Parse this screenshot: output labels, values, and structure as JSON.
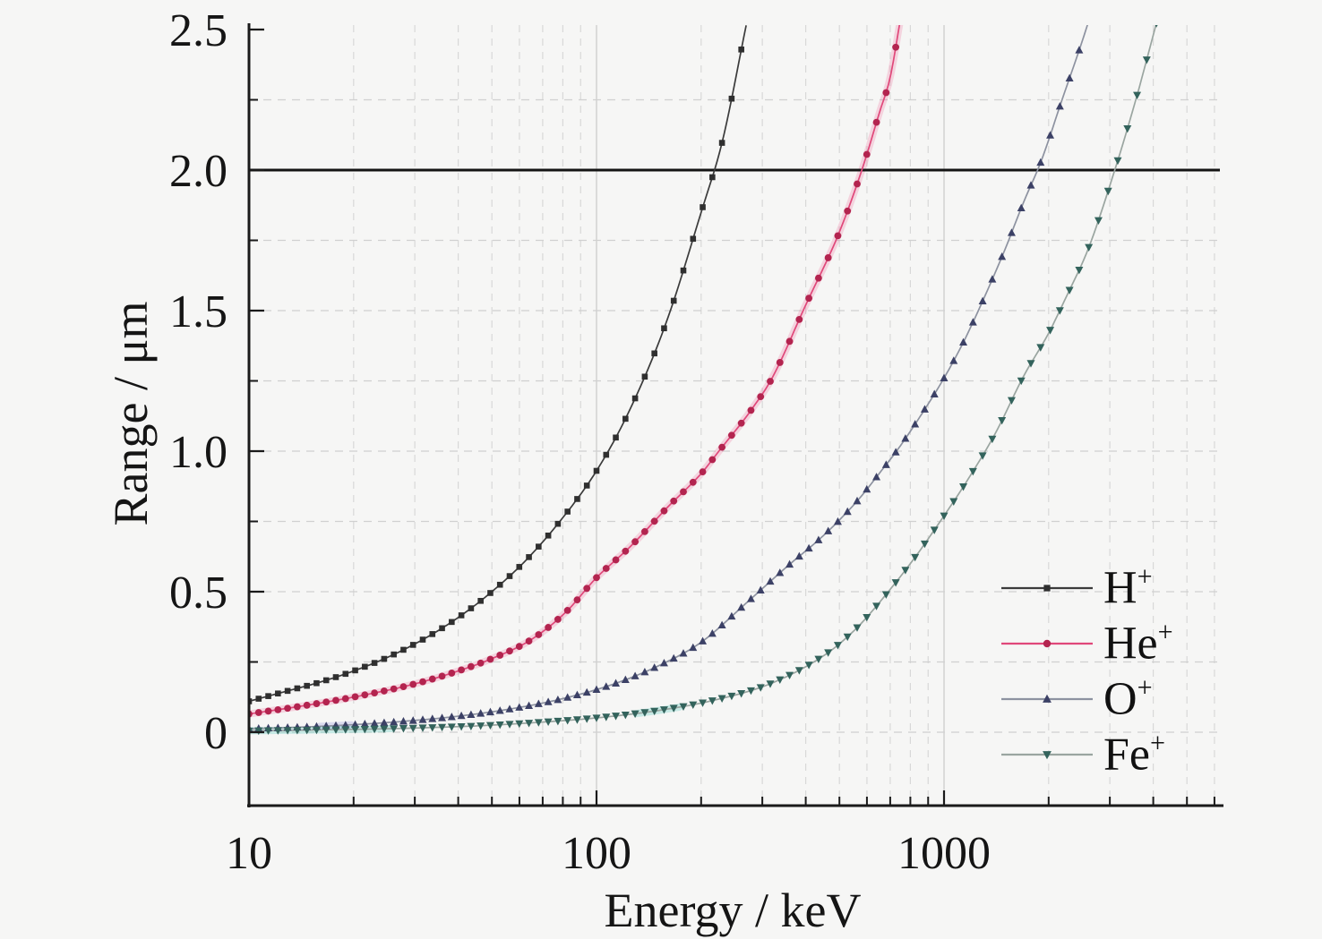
{
  "figure": {
    "background": "#f6f6f5"
  },
  "chart_data": {
    "type": "line",
    "title": "",
    "xlabel": "Energy / keV",
    "ylabel": "Range / μm",
    "x_scale": "log",
    "xlim": [
      10,
      6200
    ],
    "ylim": [
      -0.26,
      2.5
    ],
    "x_ticks": [
      {
        "value": 10,
        "label": "10"
      },
      {
        "value": 100,
        "label": "100"
      },
      {
        "value": 1000,
        "label": "1000"
      }
    ],
    "x_minor_ticks": [
      20,
      30,
      40,
      50,
      60,
      70,
      80,
      90,
      200,
      300,
      400,
      500,
      600,
      700,
      800,
      900,
      2000,
      3000,
      4000,
      5000,
      6000
    ],
    "y_ticks": [
      {
        "value": 0,
        "label": "0"
      },
      {
        "value": 0.5,
        "label": "0.5"
      },
      {
        "value": 1.0,
        "label": "1.0"
      },
      {
        "value": 1.5,
        "label": "1.5"
      },
      {
        "value": 2.0,
        "label": "2.0"
      },
      {
        "value": 2.5,
        "label": "2.5"
      }
    ],
    "y_minor_step": 0.25,
    "grid": {
      "on": true,
      "color": "#d8d8d8",
      "decade_color": "#d2d2d2",
      "style": "dashed",
      "horizontal_step": 0.25
    },
    "reference_line": {
      "y": 2.0,
      "color": "#141414",
      "width": 3
    },
    "legend": {
      "position": "inside lower right"
    },
    "marker_interval_per_decade": 36,
    "series": [
      {
        "name": "H+",
        "label": "H",
        "label_sup": "+",
        "marker": "square",
        "line_color": "#3b3b3b",
        "marker_color": "#2f2f2f",
        "glow_color": "",
        "glow_ranges": [],
        "points": [
          [
            10,
            0.11
          ],
          [
            13,
            0.148
          ],
          [
            16,
            0.178
          ],
          [
            20,
            0.218
          ],
          [
            25,
            0.266
          ],
          [
            32,
            0.333
          ],
          [
            40,
            0.408
          ],
          [
            50,
            0.5
          ],
          [
            63,
            0.615
          ],
          [
            79,
            0.755
          ],
          [
            100,
            0.93
          ],
          [
            125,
            1.15
          ],
          [
            160,
            1.47
          ],
          [
            200,
            1.85
          ],
          [
            230,
            2.1
          ],
          [
            270,
            2.52
          ]
        ]
      },
      {
        "name": "He+",
        "label": "He",
        "label_sup": "+",
        "marker": "circle",
        "line_color": "#e0487a",
        "marker_color": "#b3244f",
        "glow_color": "rgba(238,100,150,0.24)",
        "glow_ranges": [
          [
            10,
            750
          ]
        ],
        "points": [
          [
            10,
            0.065
          ],
          [
            14,
            0.092
          ],
          [
            20,
            0.125
          ],
          [
            30,
            0.172
          ],
          [
            40,
            0.218
          ],
          [
            50,
            0.262
          ],
          [
            65,
            0.33
          ],
          [
            82,
            0.43
          ],
          [
            100,
            0.55
          ],
          [
            125,
            0.66
          ],
          [
            160,
            0.8
          ],
          [
            200,
            0.92
          ],
          [
            225,
            1.0
          ],
          [
            280,
            1.15
          ],
          [
            320,
            1.26
          ],
          [
            400,
            1.52
          ],
          [
            500,
            1.78
          ],
          [
            580,
            2.0
          ],
          [
            650,
            2.2
          ],
          [
            700,
            2.33
          ],
          [
            750,
            2.54
          ]
        ]
      },
      {
        "name": "O+",
        "label": "O",
        "label_sup": "+",
        "marker": "triangle-up",
        "line_color": "#8d92a0",
        "marker_color": "#3c4166",
        "glow_color": "rgba(110,110,210,0.20)",
        "glow_ranges": [
          [
            16,
            20
          ]
        ],
        "points": [
          [
            10,
            0.0125
          ],
          [
            14,
            0.018
          ],
          [
            20,
            0.027
          ],
          [
            28,
            0.039
          ],
          [
            40,
            0.057
          ],
          [
            56,
            0.082
          ],
          [
            79,
            0.118
          ],
          [
            110,
            0.168
          ],
          [
            150,
            0.235
          ],
          [
            200,
            0.32
          ],
          [
            270,
            0.46
          ],
          [
            350,
            0.585
          ],
          [
            450,
            0.7
          ],
          [
            560,
            0.82
          ],
          [
            660,
            0.93
          ],
          [
            730,
            1.0
          ],
          [
            850,
            1.12
          ],
          [
            1000,
            1.26
          ],
          [
            1150,
            1.4
          ],
          [
            1320,
            1.56
          ],
          [
            1500,
            1.72
          ],
          [
            1700,
            1.89
          ],
          [
            1900,
            2.03
          ],
          [
            2200,
            2.26
          ],
          [
            2500,
            2.46
          ],
          [
            2700,
            2.59
          ]
        ]
      },
      {
        "name": "Fe+",
        "label": "Fe",
        "label_sup": "+",
        "marker": "triangle-down",
        "line_color": "#9aa5a0",
        "marker_color": "#33635c",
        "glow_color": "rgba(80,200,185,0.28)",
        "glow_ranges": [
          [
            10,
            26
          ],
          [
            130,
            175
          ]
        ],
        "points": [
          [
            10,
            0.005
          ],
          [
            15,
            0.008
          ],
          [
            22,
            0.011
          ],
          [
            32,
            0.016
          ],
          [
            46,
            0.023
          ],
          [
            68,
            0.035
          ],
          [
            100,
            0.051
          ],
          [
            150,
            0.077
          ],
          [
            220,
            0.115
          ],
          [
            320,
            0.175
          ],
          [
            460,
            0.28
          ],
          [
            560,
            0.37
          ],
          [
            640,
            0.45
          ],
          [
            800,
            0.6
          ],
          [
            1000,
            0.77
          ],
          [
            1200,
            0.92
          ],
          [
            1400,
            1.06
          ],
          [
            1700,
            1.27
          ],
          [
            2000,
            1.42
          ],
          [
            2250,
            1.55
          ],
          [
            2600,
            1.72
          ],
          [
            3100,
            2.0
          ],
          [
            3600,
            2.27
          ],
          [
            4100,
            2.53
          ]
        ]
      }
    ]
  }
}
